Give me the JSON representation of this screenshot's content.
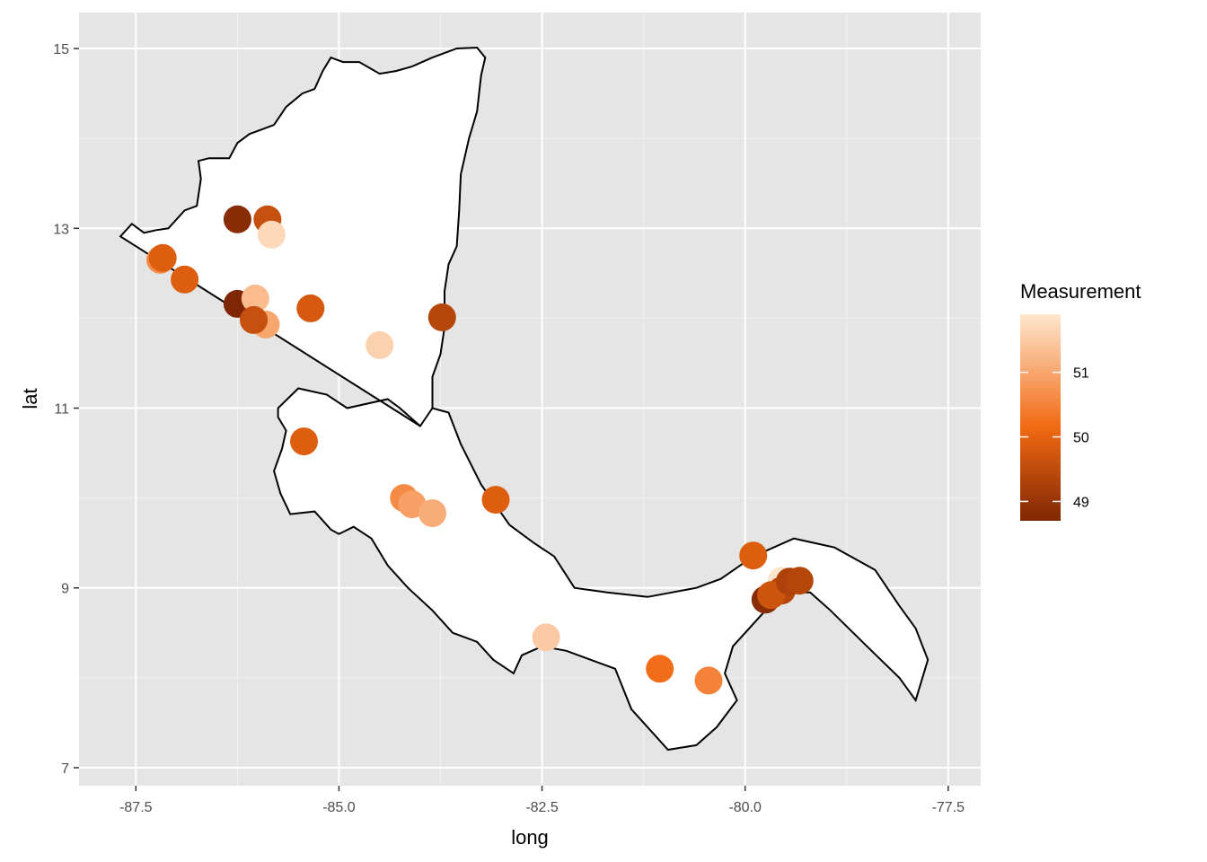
{
  "chart_data": {
    "type": "scatter",
    "xlabel": "long",
    "ylabel": "lat",
    "xlim": [
      -88.2,
      -77.1
    ],
    "ylim": [
      6.8,
      15.4
    ],
    "x_ticks": [
      -87.5,
      -85.0,
      -82.5,
      -80.0,
      -77.5
    ],
    "x_tick_labels": [
      "-87.5",
      "-85.0",
      "-82.5",
      "-80.0",
      "-77.5"
    ],
    "y_ticks": [
      7,
      9,
      11,
      13,
      15
    ],
    "y_tick_labels": [
      "7",
      "9",
      "11",
      "13",
      "15"
    ],
    "grid": true,
    "background": "#e5e5e5",
    "legend": {
      "title": "Measurement",
      "placement": "right",
      "range": [
        48.7,
        51.9
      ],
      "ticks": [
        49,
        50,
        51
      ],
      "tick_labels": [
        "49",
        "50",
        "51"
      ],
      "color_low": "#7f2704",
      "color_mid": "#f16913",
      "color_high": "#fee6ce"
    },
    "outline": [
      [
        -87.69,
        12.91
      ],
      [
        -87.55,
        13.05
      ],
      [
        -87.4,
        12.95
      ],
      [
        -87.25,
        12.98
      ],
      [
        -87.1,
        13.0
      ],
      [
        -86.9,
        13.2
      ],
      [
        -86.75,
        13.25
      ],
      [
        -86.7,
        13.55
      ],
      [
        -86.73,
        13.75
      ],
      [
        -86.6,
        13.78
      ],
      [
        -86.35,
        13.78
      ],
      [
        -86.25,
        13.95
      ],
      [
        -86.1,
        14.05
      ],
      [
        -85.95,
        14.1
      ],
      [
        -85.8,
        14.15
      ],
      [
        -85.65,
        14.35
      ],
      [
        -85.45,
        14.5
      ],
      [
        -85.3,
        14.55
      ],
      [
        -85.2,
        14.75
      ],
      [
        -85.1,
        14.9
      ],
      [
        -84.95,
        14.85
      ],
      [
        -84.75,
        14.85
      ],
      [
        -84.5,
        14.72
      ],
      [
        -84.3,
        14.75
      ],
      [
        -84.1,
        14.8
      ],
      [
        -83.85,
        14.9
      ],
      [
        -83.55,
        15.0
      ],
      [
        -83.3,
        15.01
      ],
      [
        -83.2,
        14.9
      ],
      [
        -83.25,
        14.7
      ],
      [
        -83.3,
        14.3
      ],
      [
        -83.4,
        14.0
      ],
      [
        -83.5,
        13.6
      ],
      [
        -83.52,
        13.2
      ],
      [
        -83.55,
        12.8
      ],
      [
        -83.65,
        12.6
      ],
      [
        -83.7,
        12.3
      ],
      [
        -83.7,
        11.9
      ],
      [
        -83.75,
        11.6
      ],
      [
        -83.85,
        11.35
      ],
      [
        -83.85,
        11.0
      ],
      [
        -84.0,
        10.8
      ],
      [
        -84.25,
        11.0
      ],
      [
        -84.4,
        11.1
      ],
      [
        -84.9,
        11.0
      ],
      [
        -85.15,
        11.15
      ],
      [
        -85.5,
        11.22
      ],
      [
        -85.75,
        11.0
      ],
      [
        -85.75,
        10.9
      ],
      [
        -85.65,
        10.75
      ],
      [
        -85.7,
        10.55
      ],
      [
        -85.8,
        10.3
      ],
      [
        -85.72,
        10.05
      ],
      [
        -85.6,
        9.82
      ],
      [
        -85.3,
        9.85
      ],
      [
        -85.1,
        9.65
      ],
      [
        -85.0,
        9.6
      ],
      [
        -84.82,
        9.68
      ],
      [
        -84.6,
        9.55
      ],
      [
        -84.4,
        9.25
      ],
      [
        -84.15,
        9.0
      ],
      [
        -83.85,
        8.75
      ],
      [
        -83.6,
        8.5
      ],
      [
        -83.3,
        8.4
      ],
      [
        -83.1,
        8.2
      ],
      [
        -82.85,
        8.05
      ],
      [
        -82.75,
        8.25
      ],
      [
        -82.5,
        8.35
      ],
      [
        -82.2,
        8.3
      ],
      [
        -81.9,
        8.2
      ],
      [
        -81.6,
        8.1
      ],
      [
        -81.4,
        7.65
      ],
      [
        -81.15,
        7.4
      ],
      [
        -80.95,
        7.2
      ],
      [
        -80.6,
        7.25
      ],
      [
        -80.35,
        7.45
      ],
      [
        -80.1,
        7.75
      ],
      [
        -80.25,
        8.05
      ],
      [
        -80.15,
        8.35
      ],
      [
        -79.85,
        8.65
      ],
      [
        -79.55,
        8.95
      ],
      [
        -79.2,
        8.95
      ],
      [
        -78.95,
        8.75
      ],
      [
        -78.5,
        8.35
      ],
      [
        -78.1,
        8.0
      ],
      [
        -77.9,
        7.75
      ],
      [
        -77.75,
        8.2
      ],
      [
        -77.9,
        8.55
      ],
      [
        -78.1,
        8.8
      ],
      [
        -78.4,
        9.2
      ],
      [
        -78.9,
        9.45
      ],
      [
        -79.4,
        9.55
      ],
      [
        -79.9,
        9.35
      ],
      [
        -80.3,
        9.1
      ],
      [
        -80.6,
        9.0
      ],
      [
        -81.2,
        8.9
      ],
      [
        -81.7,
        8.95
      ],
      [
        -82.1,
        9.0
      ],
      [
        -82.35,
        9.35
      ],
      [
        -82.6,
        9.5
      ],
      [
        -82.9,
        9.7
      ],
      [
        -83.25,
        10.15
      ],
      [
        -83.5,
        10.6
      ],
      [
        -83.65,
        10.95
      ],
      [
        -83.85,
        11.0
      ],
      [
        -84.0,
        10.8
      ]
    ],
    "points": [
      {
        "long": -86.25,
        "lat": 13.1,
        "value": 48.8
      },
      {
        "long": -85.88,
        "lat": 13.1,
        "value": 49.6
      },
      {
        "long": -85.83,
        "lat": 12.93,
        "value": 51.7
      },
      {
        "long": -87.2,
        "lat": 12.65,
        "value": 50.6
      },
      {
        "long": -87.17,
        "lat": 12.67,
        "value": 49.9
      },
      {
        "long": -86.9,
        "lat": 12.43,
        "value": 49.9
      },
      {
        "long": -86.25,
        "lat": 12.16,
        "value": 48.7
      },
      {
        "long": -86.03,
        "lat": 12.22,
        "value": 51.3
      },
      {
        "long": -85.9,
        "lat": 11.93,
        "value": 51.0
      },
      {
        "long": -86.05,
        "lat": 11.98,
        "value": 49.6
      },
      {
        "long": -85.35,
        "lat": 12.11,
        "value": 49.8
      },
      {
        "long": -84.5,
        "lat": 11.7,
        "value": 51.6
      },
      {
        "long": -83.73,
        "lat": 12.01,
        "value": 49.4
      },
      {
        "long": -85.43,
        "lat": 10.63,
        "value": 49.9
      },
      {
        "long": -84.2,
        "lat": 10.0,
        "value": 50.6
      },
      {
        "long": -84.1,
        "lat": 9.93,
        "value": 50.9
      },
      {
        "long": -83.85,
        "lat": 9.83,
        "value": 51.1
      },
      {
        "long": -83.07,
        "lat": 9.98,
        "value": 49.9
      },
      {
        "long": -82.45,
        "lat": 8.45,
        "value": 51.5
      },
      {
        "long": -81.05,
        "lat": 8.1,
        "value": 50.2
      },
      {
        "long": -80.45,
        "lat": 7.97,
        "value": 50.5
      },
      {
        "long": -79.9,
        "lat": 9.36,
        "value": 49.9
      },
      {
        "long": -79.55,
        "lat": 9.08,
        "value": 51.9
      },
      {
        "long": -79.75,
        "lat": 8.87,
        "value": 48.8
      },
      {
        "long": -79.55,
        "lat": 8.97,
        "value": 49.4
      },
      {
        "long": -79.68,
        "lat": 8.92,
        "value": 49.7
      },
      {
        "long": -79.45,
        "lat": 9.07,
        "value": 49.3
      },
      {
        "long": -79.33,
        "lat": 9.08,
        "value": 49.4
      }
    ]
  }
}
